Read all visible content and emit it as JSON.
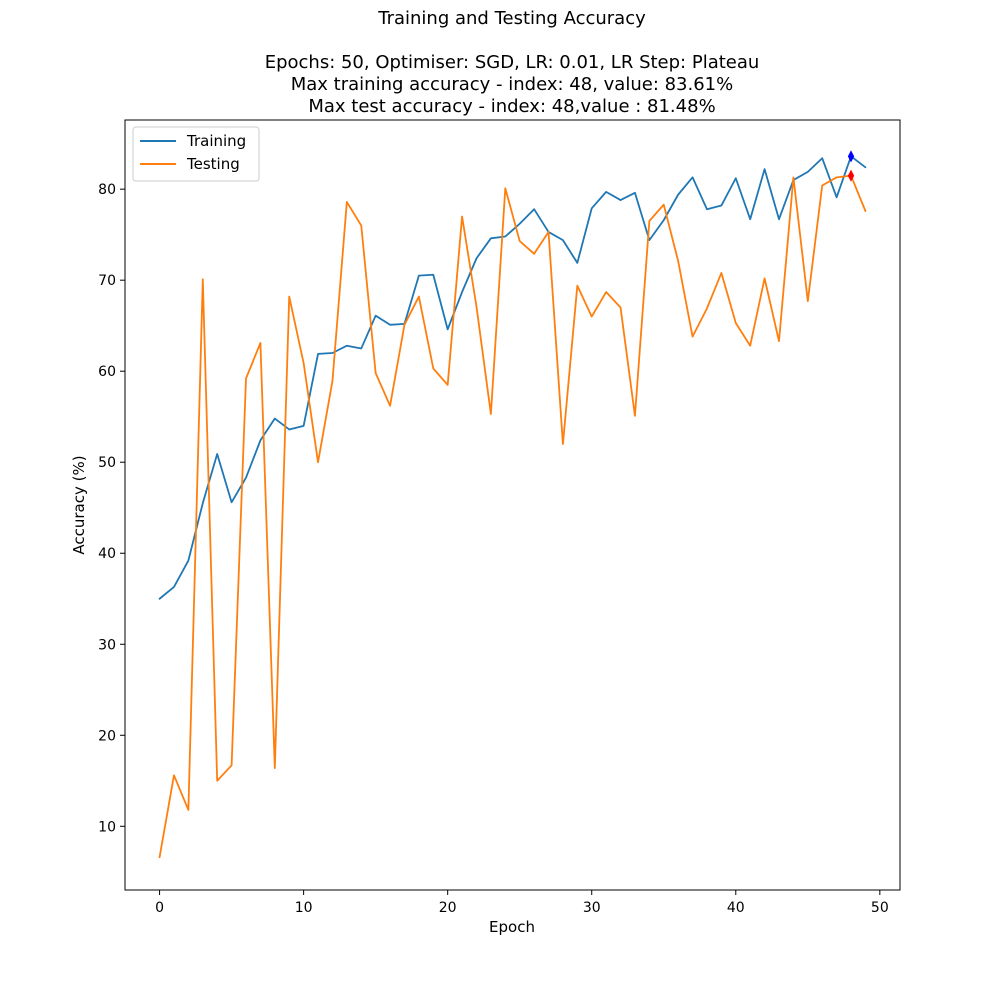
{
  "chart_data": {
    "type": "line",
    "title": "Training and Testing Accuracy",
    "subtitle_lines": [
      "Epochs: 50, Optimiser: SGD, LR: 0.01, LR Step: Plateau",
      "Max training accuracy - index: 48, value: 83.61%",
      "Max test accuracy - index: 48,value : 81.48%"
    ],
    "xlabel": "Epoch",
    "ylabel": "Accuracy (%)",
    "xlim": [
      -2.4,
      51.4
    ],
    "ylim": [
      3.0,
      87.6
    ],
    "xticks": [
      0,
      10,
      20,
      30,
      40,
      50
    ],
    "yticks": [
      10,
      20,
      30,
      40,
      50,
      60,
      70,
      80
    ],
    "grid": false,
    "legend_position": "upper-left",
    "x": [
      0,
      1,
      2,
      3,
      4,
      5,
      6,
      7,
      8,
      9,
      10,
      11,
      12,
      13,
      14,
      15,
      16,
      17,
      18,
      19,
      20,
      21,
      22,
      23,
      24,
      25,
      26,
      27,
      28,
      29,
      30,
      31,
      32,
      33,
      34,
      35,
      36,
      37,
      38,
      39,
      40,
      41,
      42,
      43,
      44,
      45,
      46,
      47,
      48,
      49
    ],
    "series": [
      {
        "name": "Training",
        "color": "#1f77b4",
        "values": [
          35.0,
          36.3,
          39.2,
          45.5,
          50.9,
          45.6,
          48.3,
          52.4,
          54.8,
          53.6,
          54.0,
          61.9,
          62.0,
          62.8,
          62.5,
          66.1,
          65.1,
          65.2,
          70.5,
          70.6,
          64.6,
          68.7,
          72.4,
          74.6,
          74.8,
          76.2,
          77.8,
          75.3,
          74.4,
          71.9,
          77.9,
          79.7,
          78.8,
          79.6,
          74.4,
          76.6,
          79.4,
          81.3,
          77.8,
          78.2,
          81.2,
          76.7,
          82.2,
          76.7,
          81.0,
          81.9,
          83.4,
          79.1,
          83.61,
          82.4
        ]
      },
      {
        "name": "Testing",
        "color": "#ff7f0e",
        "values": [
          6.6,
          15.6,
          11.8,
          70.1,
          15.0,
          16.7,
          59.2,
          63.1,
          16.4,
          68.2,
          60.9,
          50.0,
          58.9,
          78.6,
          76.0,
          59.8,
          56.2,
          65.1,
          68.2,
          60.3,
          58.5,
          77.0,
          67.1,
          55.3,
          80.1,
          74.3,
          72.9,
          75.3,
          52.0,
          69.4,
          66.0,
          68.7,
          67.0,
          55.1,
          76.5,
          78.3,
          72.1,
          63.8,
          66.9,
          70.8,
          65.3,
          62.8,
          70.2,
          63.3,
          81.3,
          67.7,
          80.4,
          81.3,
          81.48,
          77.6
        ]
      }
    ],
    "markers": [
      {
        "series": "Training",
        "x": 48,
        "y": 83.61,
        "color": "#0000ff",
        "shape": "thin-diamond"
      },
      {
        "series": "Testing",
        "x": 48,
        "y": 81.48,
        "color": "#ff0000",
        "shape": "thin-diamond"
      }
    ]
  }
}
